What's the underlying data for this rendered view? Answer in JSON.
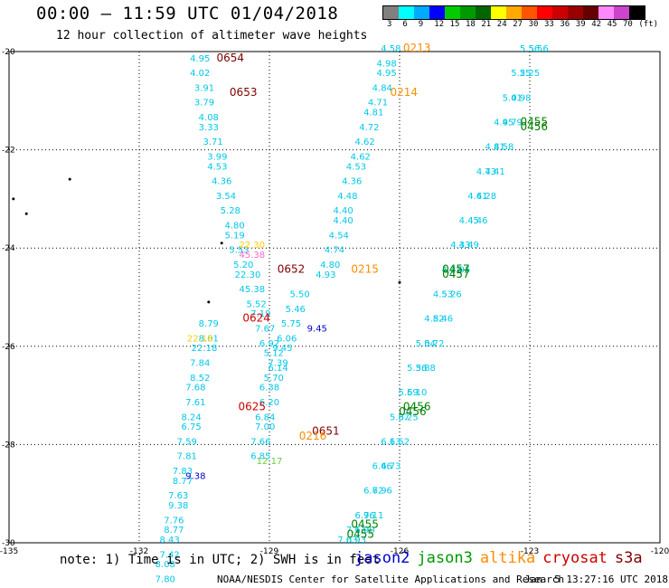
{
  "header": {
    "title": "00:00 – 11:59 UTC 01/04/2018",
    "subtitle": "12 hour collection of altimeter wave heights"
  },
  "scale": {
    "colors": [
      "#808080",
      "#00ffff",
      "#00aaff",
      "#0000ff",
      "#00cc00",
      "#009900",
      "#006600",
      "#ffff00",
      "#ffaa00",
      "#ff5500",
      "#ff0000",
      "#cc0000",
      "#990000",
      "#660000",
      "#ff88ff",
      "#cc44cc",
      "#000000"
    ],
    "labels": [
      "3",
      "6",
      "9",
      "12",
      "15",
      "18",
      "21",
      "24",
      "27",
      "30",
      "33",
      "36",
      "39",
      "42",
      "45",
      "70",
      "(ft)"
    ]
  },
  "axes": {
    "lon_labels": [
      "-135",
      "-132",
      "-129",
      "-126",
      "-123",
      "-120"
    ],
    "lat_labels": [
      "-20",
      "-22",
      "-24",
      "-26",
      "-28",
      "-30"
    ]
  },
  "chart_data": {
    "type": "scatter",
    "xlabel": "",
    "ylabel": "",
    "xlim": [
      -135,
      -120
    ],
    "ylim": [
      -30,
      -20
    ],
    "grid": true,
    "tracks": [
      {
        "satellite": "cryosat",
        "color": "#00c8e8",
        "time_label": "0654",
        "label_color": "#800000",
        "lon": [
          -130.6,
          -130.6,
          -130.5,
          -130.5,
          -130.4,
          -130.4,
          -130.3,
          -130.2,
          -130.2,
          -130.1,
          -130.0,
          -129.9,
          -129.8,
          -129.8,
          -129.7,
          -129.6,
          -129.5,
          -129.4,
          -129.3,
          -129.2,
          -129.1,
          -129.0,
          -128.9,
          -128.8
        ],
        "lat": [
          -20.2,
          -20.5,
          -20.8,
          -21.1,
          -21.4,
          -21.6,
          -21.9,
          -22.2,
          -22.4,
          -22.7,
          -23.0,
          -23.3,
          -23.6,
          -23.8,
          -24.1,
          -24.4,
          -24.6,
          -24.9,
          -25.2,
          -25.4,
          -25.7,
          -26.0,
          -26.2,
          -26.5
        ],
        "values": [
          "4.95",
          "4.02",
          "3.91",
          "3.79",
          "4.08",
          "3.33",
          "3.71",
          "3.99",
          "4.53",
          "4.36",
          "3.54",
          "5.28",
          "4.80",
          "5.19",
          "5.53",
          "5.20",
          "22.30",
          "45.38",
          "5.52",
          "7.19",
          "7.67",
          "6.92",
          "5.12",
          "6.14"
        ]
      },
      {
        "satellite": "cryosat",
        "color": "#00c8e8",
        "time_label": "0624",
        "label_color": "#cc0000",
        "lon": [
          -130.4,
          -130.4,
          -130.5,
          -130.6,
          -130.6,
          -130.7,
          -130.7,
          -130.8,
          -130.8,
          -130.9,
          -130.9,
          -131.0,
          -131.0,
          -131.1,
          -131.1,
          -131.2,
          -131.2,
          -131.3,
          -131.3,
          -131.4,
          -131.4
        ],
        "lat": [
          -25.6,
          -25.9,
          -26.1,
          -26.4,
          -26.7,
          -26.9,
          -27.2,
          -27.5,
          -27.7,
          -28.0,
          -28.3,
          -28.6,
          -28.8,
          -29.1,
          -29.3,
          -29.6,
          -29.8,
          -30.0,
          -30.3,
          -30.5,
          -30.8
        ],
        "values": [
          "8.79",
          "8.01",
          "22.18",
          "7.84",
          "8.52",
          "7.68",
          "7.61",
          "8.24",
          "6.75",
          "7.59",
          "7.81",
          "7.83",
          "8.77",
          "7.63",
          "9.38",
          "7.76",
          "8.77",
          "8.43",
          "7.42",
          "8.08",
          "7.80"
        ]
      },
      {
        "satellite": "altika",
        "color": "#00c8e8",
        "time_label": "0213",
        "label_color": "#ff8c00",
        "lon": [
          -126.2,
          -126.3,
          -126.3,
          -126.4,
          -126.5,
          -126.6,
          -126.7,
          -126.8,
          -126.9,
          -127.0,
          -127.1,
          -127.2,
          -127.3,
          -127.3,
          -127.4,
          -127.5,
          -127.6,
          -127.7
        ],
        "lat": [
          -20.0,
          -20.3,
          -20.5,
          -20.8,
          -21.1,
          -21.3,
          -21.6,
          -21.9,
          -22.2,
          -22.4,
          -22.7,
          -23.0,
          -23.3,
          -23.5,
          -23.8,
          -24.1,
          -24.4,
          -24.6
        ],
        "values": [
          "4.58",
          "4.98",
          "4.95",
          "4.84",
          "4.71",
          "4.81",
          "4.72",
          "4.62",
          "4.62",
          "4.53",
          "4.36",
          "4.48",
          "4.40",
          "4.40",
          "4.54",
          "4.74",
          "4.80",
          "4.93"
        ]
      },
      {
        "satellite": "cryosat",
        "color": "#00c8e8",
        "time_label": "0652",
        "label_color": "#800000",
        "lon": [
          -128.3,
          -128.4,
          -128.5,
          -128.6,
          -128.7,
          -128.8,
          -128.9,
          -129.0,
          -129.0,
          -129.1,
          -129.1,
          -129.2,
          -129.2
        ],
        "lat": [
          -25.0,
          -25.3,
          -25.6,
          -25.9,
          -26.1,
          -26.4,
          -26.7,
          -26.9,
          -27.2,
          -27.5,
          -27.7,
          -28.0,
          -28.3
        ],
        "values": [
          "5.50",
          "5.46",
          "5.75",
          "6.06",
          "9.45",
          "7.39",
          "5.70",
          "6.38",
          "6.20",
          "6.84",
          "7.00",
          "7.66",
          "6.85"
        ]
      },
      {
        "satellite": "jason3",
        "color": "#00c8e8",
        "time_label": "0455",
        "label_color": "#008000",
        "lon": [
          -123.0,
          -123.2,
          -123.4,
          -123.6,
          -123.8,
          -124.0,
          -124.2,
          -124.4,
          -124.6,
          -124.8,
          -125.0,
          -125.2,
          -125.4,
          -125.6,
          -125.8,
          -126.0,
          -126.2,
          -126.4,
          -126.6,
          -126.8,
          -127.0,
          -127.2
        ],
        "lat": [
          -20.0,
          -20.5,
          -21.0,
          -21.5,
          -22.0,
          -22.5,
          -23.0,
          -23.5,
          -24.0,
          -24.5,
          -25.0,
          -25.5,
          -26.0,
          -26.5,
          -27.0,
          -27.5,
          -28.0,
          -28.5,
          -29.0,
          -29.5,
          -29.8,
          -30.0
        ],
        "values": [
          "5.56",
          "5.25",
          "5.01",
          "4.95",
          "4.81",
          "4.73",
          "4.61",
          "4.45",
          "4.33",
          "4.27",
          "4.53",
          "4.82",
          "5.04",
          "5.36",
          "5.59",
          "5.87",
          "6.13",
          "6.46",
          "6.72",
          "6.96",
          "7.13",
          "7.03"
        ]
      },
      {
        "satellite": "jason2",
        "color": "#00c8e8",
        "time_label": "0456",
        "label_color": "#008000",
        "lon": [
          -122.8,
          -123.0,
          -123.2,
          -123.4,
          -123.6,
          -123.8,
          -124.0,
          -124.2,
          -124.4,
          -124.6,
          -124.8,
          -125.0,
          -125.2,
          -125.4,
          -125.6,
          -125.8,
          -126.0,
          -126.2,
          -126.4,
          -126.6,
          -126.8,
          -127.0
        ],
        "lat": [
          -20.0,
          -20.5,
          -21.0,
          -21.5,
          -22.0,
          -22.5,
          -23.0,
          -23.5,
          -24.0,
          -24.5,
          -25.0,
          -25.5,
          -26.0,
          -26.5,
          -27.0,
          -27.5,
          -28.0,
          -28.5,
          -29.0,
          -29.5,
          -29.8,
          -30.0
        ],
        "values": [
          "5.56",
          "5.25",
          "4.98",
          "4.79",
          "4.58",
          "4.41",
          "4.28",
          "4.46",
          "4.49",
          "4.95",
          "5.26",
          "5.46",
          "5.72",
          "5.88",
          "6.10",
          "6.25",
          "6.52",
          "6.73",
          "6.96",
          "7.11",
          "6.90",
          "6.93"
        ]
      }
    ],
    "pass_labels": [
      {
        "text": "0654",
        "lon": -129.9,
        "lat": -20.2,
        "color": "#800000"
      },
      {
        "text": "0653",
        "lon": -129.6,
        "lat": -20.9,
        "color": "#800000"
      },
      {
        "text": "0213",
        "lon": -125.6,
        "lat": -20.0,
        "color": "#ff8c00"
      },
      {
        "text": "0214",
        "lon": -125.9,
        "lat": -20.9,
        "color": "#ff8c00"
      },
      {
        "text": "0455",
        "lon": -122.9,
        "lat": -21.5,
        "color": "#008000"
      },
      {
        "text": "0456",
        "lon": -122.9,
        "lat": -21.6,
        "color": "#008000"
      },
      {
        "text": "0652",
        "lon": -128.5,
        "lat": -24.5,
        "color": "#800000"
      },
      {
        "text": "0215",
        "lon": -126.8,
        "lat": -24.5,
        "color": "#ff8c00"
      },
      {
        "text": "0457",
        "lon": -124.7,
        "lat": -24.5,
        "color": "#008000"
      },
      {
        "text": "0457",
        "lon": -124.7,
        "lat": -24.6,
        "color": "#008000"
      },
      {
        "text": "0624",
        "lon": -129.3,
        "lat": -25.5,
        "color": "#cc0000"
      },
      {
        "text": "0625",
        "lon": -129.4,
        "lat": -27.3,
        "color": "#cc0000"
      },
      {
        "text": "0456",
        "lon": -125.6,
        "lat": -27.3,
        "color": "#008000"
      },
      {
        "text": "0456",
        "lon": -125.7,
        "lat": -27.4,
        "color": "#008000"
      },
      {
        "text": "0651",
        "lon": -127.7,
        "lat": -27.8,
        "color": "#800000"
      },
      {
        "text": "0216",
        "lon": -128.0,
        "lat": -27.9,
        "color": "#ff8c00"
      },
      {
        "text": "0455",
        "lon": -126.8,
        "lat": -29.7,
        "color": "#008000"
      },
      {
        "text": "0455",
        "lon": -126.9,
        "lat": -29.9,
        "color": "#008000"
      }
    ],
    "highlight_values": [
      {
        "text": "9.45",
        "lon": -127.9,
        "lat": -25.7,
        "color": "#0000cc"
      },
      {
        "text": "9.38",
        "lon": -130.7,
        "lat": -28.7,
        "color": "#0000cc"
      },
      {
        "text": "12.17",
        "lon": -129.0,
        "lat": -28.4,
        "color": "#66cc33"
      },
      {
        "text": "22.30",
        "lon": -129.4,
        "lat": -24.0,
        "color": "#ffcc00"
      },
      {
        "text": "22.18",
        "lon": -130.6,
        "lat": -25.9,
        "color": "#ffcc00"
      },
      {
        "text": "45.38",
        "lon": -129.4,
        "lat": -24.2,
        "color": "#ff66cc"
      }
    ],
    "islands": [
      {
        "lon": -133.6,
        "lat": -22.6
      },
      {
        "lon": -134.9,
        "lat": -23.0
      },
      {
        "lon": -134.6,
        "lat": -23.3
      },
      {
        "lon": -130.1,
        "lat": -23.9
      },
      {
        "lon": -130.4,
        "lat": -25.1
      },
      {
        "lon": -126.0,
        "lat": -24.7
      }
    ]
  },
  "footer": {
    "note": "note: 1) Time is in UTC; 2) SWH is in feet",
    "satellites": [
      {
        "name": "jason2",
        "color": "#0000cc"
      },
      {
        "name": "jason3",
        "color": "#009900"
      },
      {
        "name": "altika",
        "color": "#ff8c00"
      },
      {
        "name": "cryosat",
        "color": "#cc0000"
      },
      {
        "name": "s3a",
        "color": "#800000"
      }
    ],
    "credit": "NOAA/NESDIS Center for Satellite Applications and Research",
    "timestamp": "Jan  5 13:27:16 UTC 2018"
  }
}
